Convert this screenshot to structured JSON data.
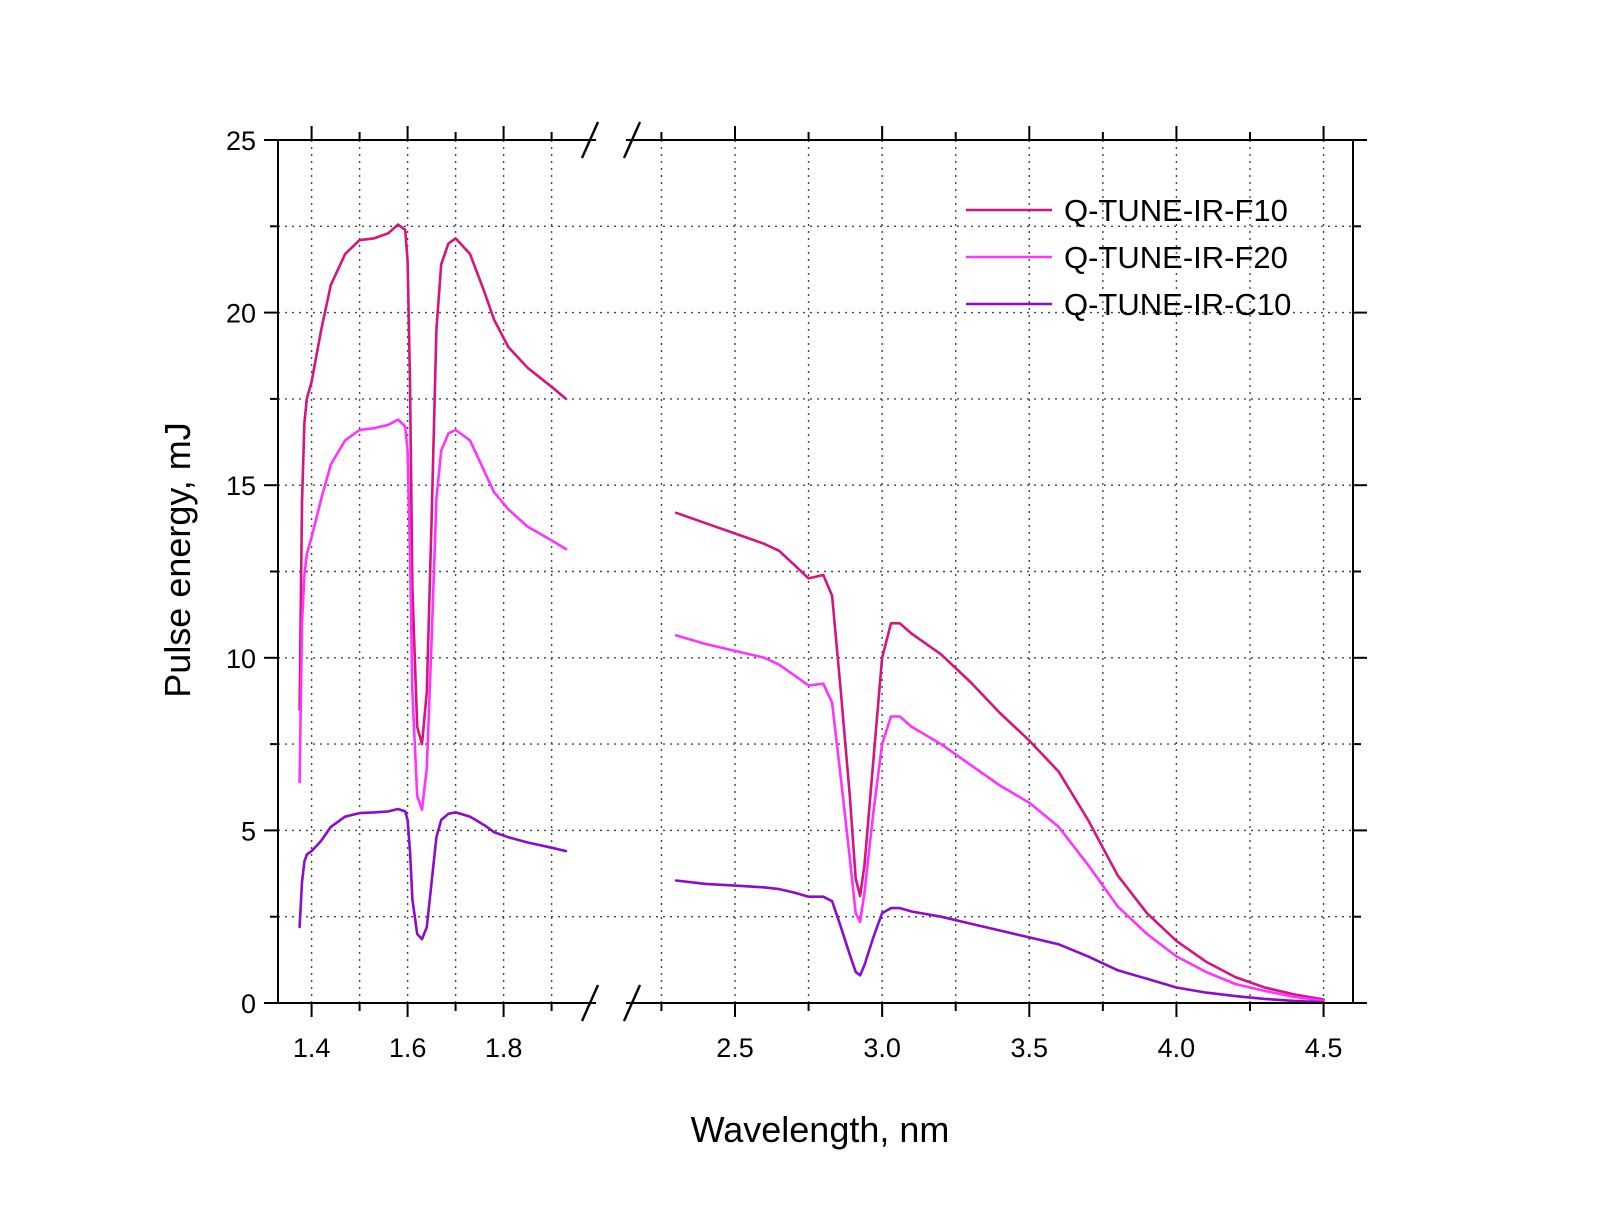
{
  "chart_data": {
    "type": "line",
    "xlabel": "Wavelength, nm",
    "ylabel": "Pulse energy, mJ",
    "ylim": [
      0,
      25
    ],
    "yticks": [
      0,
      5,
      10,
      15,
      20,
      25
    ],
    "y_minor_step": 2.5,
    "grid": true,
    "legend_position": "top-right",
    "axis_break": true,
    "segments": [
      {
        "xlim": [
          1.33,
          1.98
        ],
        "xticks": [
          "1.4",
          "1.6",
          "1.8"
        ],
        "x_minor_step": 0.1
      },
      {
        "xlim": [
          2.15,
          4.6
        ],
        "xticks": [
          "2.5",
          "3.0",
          "3.5",
          "4.0",
          "4.5"
        ],
        "x_minor_step": 0.25
      }
    ],
    "series": [
      {
        "name": "Q-TUNE-IR-F10",
        "color": "#d6147d",
        "segments": [
          [
            [
              1.375,
              8.5
            ],
            [
              1.38,
              14.5
            ],
            [
              1.385,
              16.8
            ],
            [
              1.39,
              17.5
            ],
            [
              1.4,
              18.0
            ],
            [
              1.42,
              19.5
            ],
            [
              1.44,
              20.8
            ],
            [
              1.47,
              21.7
            ],
            [
              1.5,
              22.1
            ],
            [
              1.53,
              22.15
            ],
            [
              1.56,
              22.3
            ],
            [
              1.58,
              22.55
            ],
            [
              1.595,
              22.4
            ],
            [
              1.6,
              21.5
            ],
            [
              1.605,
              18.0
            ],
            [
              1.61,
              12.0
            ],
            [
              1.62,
              8.0
            ],
            [
              1.63,
              7.5
            ],
            [
              1.64,
              9.0
            ],
            [
              1.65,
              14.0
            ],
            [
              1.66,
              19.5
            ],
            [
              1.67,
              21.4
            ],
            [
              1.685,
              22.0
            ],
            [
              1.7,
              22.15
            ],
            [
              1.73,
              21.7
            ],
            [
              1.76,
              20.6
            ],
            [
              1.78,
              19.8
            ],
            [
              1.81,
              19.0
            ],
            [
              1.85,
              18.4
            ],
            [
              1.9,
              17.85
            ],
            [
              1.93,
              17.5
            ]
          ],
          [
            [
              2.3,
              14.2
            ],
            [
              2.4,
              13.9
            ],
            [
              2.5,
              13.6
            ],
            [
              2.6,
              13.3
            ],
            [
              2.65,
              13.1
            ],
            [
              2.7,
              12.7
            ],
            [
              2.75,
              12.3
            ],
            [
              2.8,
              12.4
            ],
            [
              2.83,
              11.8
            ],
            [
              2.86,
              9.0
            ],
            [
              2.89,
              6.0
            ],
            [
              2.91,
              3.6
            ],
            [
              2.925,
              3.1
            ],
            [
              2.94,
              4.0
            ],
            [
              2.97,
              7.0
            ],
            [
              3.0,
              10.0
            ],
            [
              3.03,
              11.0
            ],
            [
              3.06,
              11.0
            ],
            [
              3.1,
              10.7
            ],
            [
              3.2,
              10.1
            ],
            [
              3.3,
              9.3
            ],
            [
              3.4,
              8.4
            ],
            [
              3.5,
              7.6
            ],
            [
              3.6,
              6.7
            ],
            [
              3.7,
              5.3
            ],
            [
              3.8,
              3.7
            ],
            [
              3.9,
              2.6
            ],
            [
              4.0,
              1.8
            ],
            [
              4.1,
              1.2
            ],
            [
              4.2,
              0.75
            ],
            [
              4.3,
              0.45
            ],
            [
              4.4,
              0.25
            ],
            [
              4.5,
              0.1
            ]
          ]
        ]
      },
      {
        "name": "Q-TUNE-IR-F20",
        "color": "#ff33ff",
        "segments": [
          [
            [
              1.375,
              6.4
            ],
            [
              1.38,
              11.0
            ],
            [
              1.385,
              12.4
            ],
            [
              1.39,
              13.0
            ],
            [
              1.4,
              13.5
            ],
            [
              1.42,
              14.6
            ],
            [
              1.44,
              15.6
            ],
            [
              1.47,
              16.3
            ],
            [
              1.5,
              16.6
            ],
            [
              1.53,
              16.65
            ],
            [
              1.56,
              16.75
            ],
            [
              1.58,
              16.9
            ],
            [
              1.595,
              16.7
            ],
            [
              1.6,
              16.0
            ],
            [
              1.605,
              13.0
            ],
            [
              1.61,
              9.0
            ],
            [
              1.62,
              6.0
            ],
            [
              1.63,
              5.6
            ],
            [
              1.64,
              6.8
            ],
            [
              1.65,
              10.5
            ],
            [
              1.66,
              14.6
            ],
            [
              1.67,
              16.0
            ],
            [
              1.685,
              16.5
            ],
            [
              1.7,
              16.6
            ],
            [
              1.73,
              16.3
            ],
            [
              1.76,
              15.4
            ],
            [
              1.78,
              14.8
            ],
            [
              1.81,
              14.3
            ],
            [
              1.85,
              13.8
            ],
            [
              1.9,
              13.4
            ],
            [
              1.93,
              13.15
            ]
          ],
          [
            [
              2.3,
              10.65
            ],
            [
              2.4,
              10.4
            ],
            [
              2.5,
              10.2
            ],
            [
              2.6,
              10.0
            ],
            [
              2.65,
              9.8
            ],
            [
              2.7,
              9.5
            ],
            [
              2.75,
              9.2
            ],
            [
              2.8,
              9.25
            ],
            [
              2.83,
              8.7
            ],
            [
              2.86,
              6.5
            ],
            [
              2.89,
              4.2
            ],
            [
              2.91,
              2.6
            ],
            [
              2.925,
              2.35
            ],
            [
              2.94,
              3.2
            ],
            [
              2.97,
              5.5
            ],
            [
              3.0,
              7.5
            ],
            [
              3.03,
              8.3
            ],
            [
              3.06,
              8.3
            ],
            [
              3.1,
              8.0
            ],
            [
              3.2,
              7.5
            ],
            [
              3.3,
              6.9
            ],
            [
              3.4,
              6.3
            ],
            [
              3.5,
              5.8
            ],
            [
              3.6,
              5.1
            ],
            [
              3.7,
              4.0
            ],
            [
              3.8,
              2.8
            ],
            [
              3.9,
              2.0
            ],
            [
              4.0,
              1.35
            ],
            [
              4.1,
              0.9
            ],
            [
              4.2,
              0.55
            ],
            [
              4.3,
              0.35
            ],
            [
              4.4,
              0.18
            ],
            [
              4.5,
              0.06
            ]
          ]
        ]
      },
      {
        "name": "Q-TUNE-IR-C10",
        "color": "#8c0ccc",
        "segments": [
          [
            [
              1.375,
              2.2
            ],
            [
              1.38,
              3.5
            ],
            [
              1.385,
              4.1
            ],
            [
              1.39,
              4.3
            ],
            [
              1.4,
              4.4
            ],
            [
              1.42,
              4.7
            ],
            [
              1.44,
              5.1
            ],
            [
              1.47,
              5.4
            ],
            [
              1.5,
              5.5
            ],
            [
              1.53,
              5.52
            ],
            [
              1.56,
              5.55
            ],
            [
              1.58,
              5.62
            ],
            [
              1.595,
              5.55
            ],
            [
              1.6,
              5.3
            ],
            [
              1.605,
              4.4
            ],
            [
              1.61,
              3.0
            ],
            [
              1.62,
              2.0
            ],
            [
              1.63,
              1.85
            ],
            [
              1.64,
              2.2
            ],
            [
              1.65,
              3.5
            ],
            [
              1.66,
              4.8
            ],
            [
              1.67,
              5.3
            ],
            [
              1.685,
              5.48
            ],
            [
              1.7,
              5.52
            ],
            [
              1.73,
              5.4
            ],
            [
              1.76,
              5.15
            ],
            [
              1.78,
              4.95
            ],
            [
              1.81,
              4.8
            ],
            [
              1.85,
              4.65
            ],
            [
              1.9,
              4.5
            ],
            [
              1.93,
              4.4
            ]
          ],
          [
            [
              2.3,
              3.55
            ],
            [
              2.4,
              3.45
            ],
            [
              2.5,
              3.4
            ],
            [
              2.6,
              3.35
            ],
            [
              2.65,
              3.3
            ],
            [
              2.7,
              3.2
            ],
            [
              2.75,
              3.08
            ],
            [
              2.8,
              3.08
            ],
            [
              2.83,
              2.95
            ],
            [
              2.86,
              2.2
            ],
            [
              2.89,
              1.4
            ],
            [
              2.91,
              0.9
            ],
            [
              2.925,
              0.8
            ],
            [
              2.94,
              1.1
            ],
            [
              2.97,
              1.9
            ],
            [
              3.0,
              2.6
            ],
            [
              3.03,
              2.75
            ],
            [
              3.06,
              2.75
            ],
            [
              3.1,
              2.65
            ],
            [
              3.2,
              2.5
            ],
            [
              3.3,
              2.3
            ],
            [
              3.4,
              2.1
            ],
            [
              3.5,
              1.9
            ],
            [
              3.6,
              1.7
            ],
            [
              3.7,
              1.35
            ],
            [
              3.8,
              0.95
            ],
            [
              3.9,
              0.7
            ],
            [
              4.0,
              0.45
            ],
            [
              4.1,
              0.3
            ],
            [
              4.2,
              0.2
            ],
            [
              4.3,
              0.12
            ],
            [
              4.4,
              0.06
            ],
            [
              4.5,
              0.02
            ]
          ]
        ]
      }
    ]
  }
}
